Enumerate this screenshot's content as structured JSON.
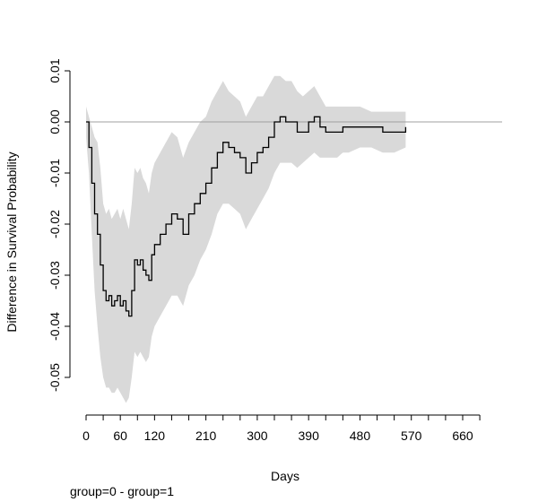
{
  "chart_data": {
    "type": "line",
    "title": "",
    "xlabel": "Days",
    "ylabel": "Difference in Survival Probability",
    "footnote": "group=0 - group=1",
    "xlim": [
      0,
      690
    ],
    "ylim": [
      -0.057,
      0.01
    ],
    "x_ticks": [
      0,
      60,
      120,
      210,
      300,
      390,
      480,
      570,
      660
    ],
    "x_minor_step": 30,
    "y_ticks": [
      -0.05,
      -0.04,
      -0.03,
      -0.02,
      -0.01,
      0.0,
      0.01
    ],
    "y_tick_labels": [
      "-0.05",
      "-0.04",
      "-0.03",
      "-0.02",
      "-0.01",
      "0.00",
      "0.01"
    ],
    "reference_line": 0,
    "colors": {
      "line": "#000000",
      "band": "#d9d9d9",
      "reference": "#a0a0a0"
    },
    "series": [
      {
        "x": [
          0,
          5,
          10,
          15,
          20,
          25,
          30,
          35,
          40,
          45,
          50,
          55,
          60,
          65,
          70,
          75,
          80,
          85,
          90,
          95,
          100,
          105,
          110,
          115,
          120,
          130,
          140,
          150,
          160,
          170,
          180,
          190,
          200,
          210,
          220,
          230,
          240,
          250,
          260,
          270,
          280,
          290,
          300,
          310,
          320,
          330,
          340,
          350,
          360,
          370,
          380,
          390,
          400,
          410,
          420,
          430,
          440,
          450,
          460,
          480,
          500,
          520,
          540,
          560
        ],
        "values": [
          0.0,
          -0.005,
          -0.012,
          -0.018,
          -0.022,
          -0.028,
          -0.033,
          -0.035,
          -0.034,
          -0.036,
          -0.035,
          -0.034,
          -0.036,
          -0.035,
          -0.037,
          -0.038,
          -0.033,
          -0.027,
          -0.028,
          -0.027,
          -0.029,
          -0.03,
          -0.031,
          -0.026,
          -0.024,
          -0.022,
          -0.02,
          -0.018,
          -0.019,
          -0.022,
          -0.018,
          -0.016,
          -0.014,
          -0.012,
          -0.009,
          -0.006,
          -0.004,
          -0.005,
          -0.006,
          -0.007,
          -0.01,
          -0.008,
          -0.006,
          -0.005,
          -0.003,
          0.0,
          0.001,
          0.0,
          0.0,
          -0.002,
          -0.002,
          0.0,
          0.001,
          -0.001,
          -0.002,
          -0.002,
          -0.002,
          -0.001,
          -0.001,
          -0.001,
          -0.001,
          -0.002,
          -0.002,
          -0.001
        ],
        "lower": [
          -0.003,
          -0.01,
          -0.022,
          -0.033,
          -0.04,
          -0.046,
          -0.05,
          -0.052,
          -0.052,
          -0.053,
          -0.053,
          -0.052,
          -0.053,
          -0.054,
          -0.055,
          -0.054,
          -0.05,
          -0.045,
          -0.046,
          -0.045,
          -0.046,
          -0.047,
          -0.046,
          -0.042,
          -0.04,
          -0.038,
          -0.036,
          -0.034,
          -0.034,
          -0.036,
          -0.032,
          -0.03,
          -0.027,
          -0.025,
          -0.022,
          -0.018,
          -0.016,
          -0.016,
          -0.017,
          -0.018,
          -0.021,
          -0.019,
          -0.017,
          -0.015,
          -0.013,
          -0.01,
          -0.008,
          -0.008,
          -0.008,
          -0.009,
          -0.008,
          -0.007,
          -0.006,
          -0.007,
          -0.007,
          -0.007,
          -0.007,
          -0.006,
          -0.006,
          -0.005,
          -0.005,
          -0.006,
          -0.006,
          -0.005
        ],
        "upper": [
          0.003,
          0.001,
          -0.001,
          -0.003,
          -0.004,
          -0.009,
          -0.016,
          -0.018,
          -0.017,
          -0.019,
          -0.018,
          -0.017,
          -0.019,
          -0.017,
          -0.019,
          -0.021,
          -0.016,
          -0.009,
          -0.01,
          -0.009,
          -0.011,
          -0.012,
          -0.014,
          -0.01,
          -0.008,
          -0.006,
          -0.004,
          -0.002,
          -0.003,
          -0.007,
          -0.004,
          -0.002,
          0.0,
          0.001,
          0.004,
          0.006,
          0.008,
          0.006,
          0.005,
          0.004,
          0.001,
          0.003,
          0.005,
          0.005,
          0.007,
          0.009,
          0.009,
          0.008,
          0.008,
          0.006,
          0.005,
          0.006,
          0.007,
          0.005,
          0.003,
          0.003,
          0.003,
          0.003,
          0.003,
          0.003,
          0.002,
          0.002,
          0.002,
          0.002
        ]
      }
    ]
  }
}
